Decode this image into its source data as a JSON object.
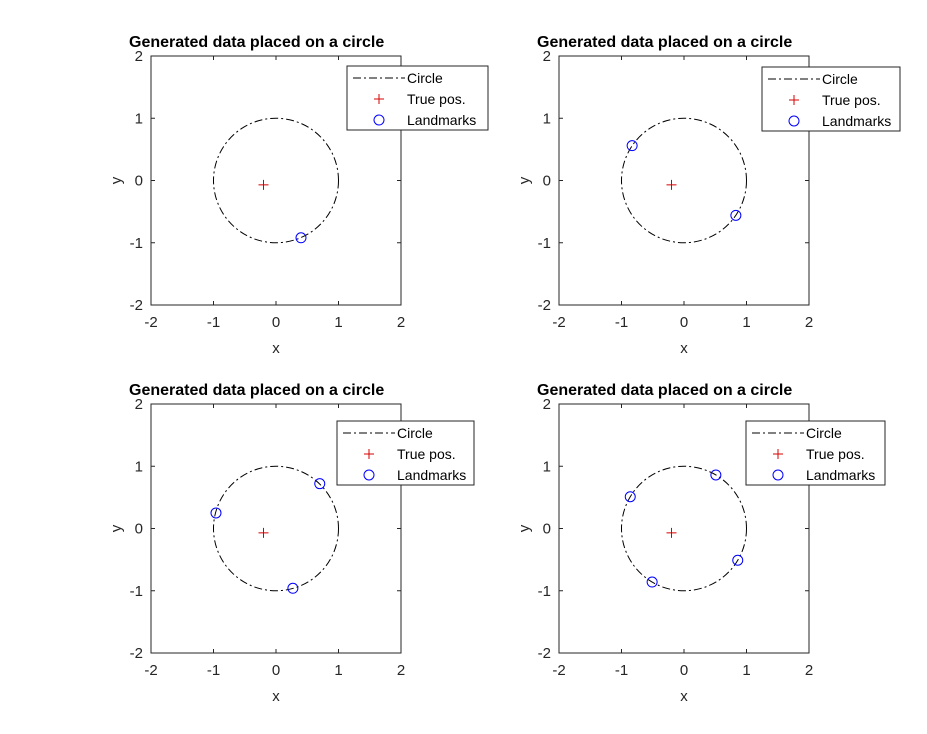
{
  "colors": {
    "circle": "#000000",
    "true_pos": "#d40000",
    "landmarks": "#0000ff",
    "axes": "#262626"
  },
  "chart_data": [
    {
      "type": "scatter",
      "title": "Generated data placed on a circle",
      "xlabel": "x",
      "ylabel": "y",
      "xlim": [
        -2,
        2
      ],
      "ylim": [
        -2,
        2
      ],
      "xticks": [
        -2,
        -1,
        0,
        1,
        2
      ],
      "yticks": [
        -2,
        -1,
        0,
        1,
        2
      ],
      "grid": false,
      "legend_position": "top-right",
      "series": [
        {
          "name": "Circle",
          "kind": "circle",
          "center": [
            0,
            0
          ],
          "radius": 1,
          "line_style": "dash-dot"
        },
        {
          "name": "True pos.",
          "kind": "point",
          "marker": "+",
          "points": [
            [
              -0.2,
              -0.07
            ]
          ]
        },
        {
          "name": "Landmarks",
          "kind": "point",
          "marker": "o",
          "points": [
            [
              0.4,
              -0.92
            ]
          ]
        }
      ]
    },
    {
      "type": "scatter",
      "title": "Generated data placed on a circle",
      "xlabel": "x",
      "ylabel": "y",
      "xlim": [
        -2,
        2
      ],
      "ylim": [
        -2,
        2
      ],
      "xticks": [
        -2,
        -1,
        0,
        1,
        2
      ],
      "yticks": [
        -2,
        -1,
        0,
        1,
        2
      ],
      "grid": false,
      "legend_position": "top-right",
      "series": [
        {
          "name": "Circle",
          "kind": "circle",
          "center": [
            0,
            0
          ],
          "radius": 1,
          "line_style": "dash-dot"
        },
        {
          "name": "True pos.",
          "kind": "point",
          "marker": "+",
          "points": [
            [
              -0.2,
              -0.07
            ]
          ]
        },
        {
          "name": "Landmarks",
          "kind": "point",
          "marker": "o",
          "points": [
            [
              -0.83,
              0.56
            ],
            [
              0.83,
              -0.56
            ]
          ]
        }
      ]
    },
    {
      "type": "scatter",
      "title": "Generated data placed on a circle",
      "xlabel": "x",
      "ylabel": "y",
      "xlim": [
        -2,
        2
      ],
      "ylim": [
        -2,
        2
      ],
      "xticks": [
        -2,
        -1,
        0,
        1,
        2
      ],
      "yticks": [
        -2,
        -1,
        0,
        1,
        2
      ],
      "grid": false,
      "legend_position": "top-right",
      "series": [
        {
          "name": "Circle",
          "kind": "circle",
          "center": [
            0,
            0
          ],
          "radius": 1,
          "line_style": "dash-dot"
        },
        {
          "name": "True pos.",
          "kind": "point",
          "marker": "+",
          "points": [
            [
              -0.2,
              -0.07
            ]
          ]
        },
        {
          "name": "Landmarks",
          "kind": "point",
          "marker": "o",
          "points": [
            [
              -0.96,
              0.25
            ],
            [
              0.7,
              0.72
            ],
            [
              0.27,
              -0.96
            ]
          ]
        }
      ]
    },
    {
      "type": "scatter",
      "title": "Generated data placed on a circle",
      "xlabel": "x",
      "ylabel": "y",
      "xlim": [
        -2,
        2
      ],
      "ylim": [
        -2,
        2
      ],
      "xticks": [
        -2,
        -1,
        0,
        1,
        2
      ],
      "yticks": [
        -2,
        -1,
        0,
        1,
        2
      ],
      "grid": false,
      "legend_position": "top-right",
      "series": [
        {
          "name": "Circle",
          "kind": "circle",
          "center": [
            0,
            0
          ],
          "radius": 1,
          "line_style": "dash-dot"
        },
        {
          "name": "True pos.",
          "kind": "point",
          "marker": "+",
          "points": [
            [
              -0.2,
              -0.07
            ]
          ]
        },
        {
          "name": "Landmarks",
          "kind": "point",
          "marker": "o",
          "points": [
            [
              -0.86,
              0.51
            ],
            [
              0.51,
              0.86
            ],
            [
              0.86,
              -0.51
            ],
            [
              -0.51,
              -0.86
            ]
          ]
        }
      ]
    }
  ]
}
